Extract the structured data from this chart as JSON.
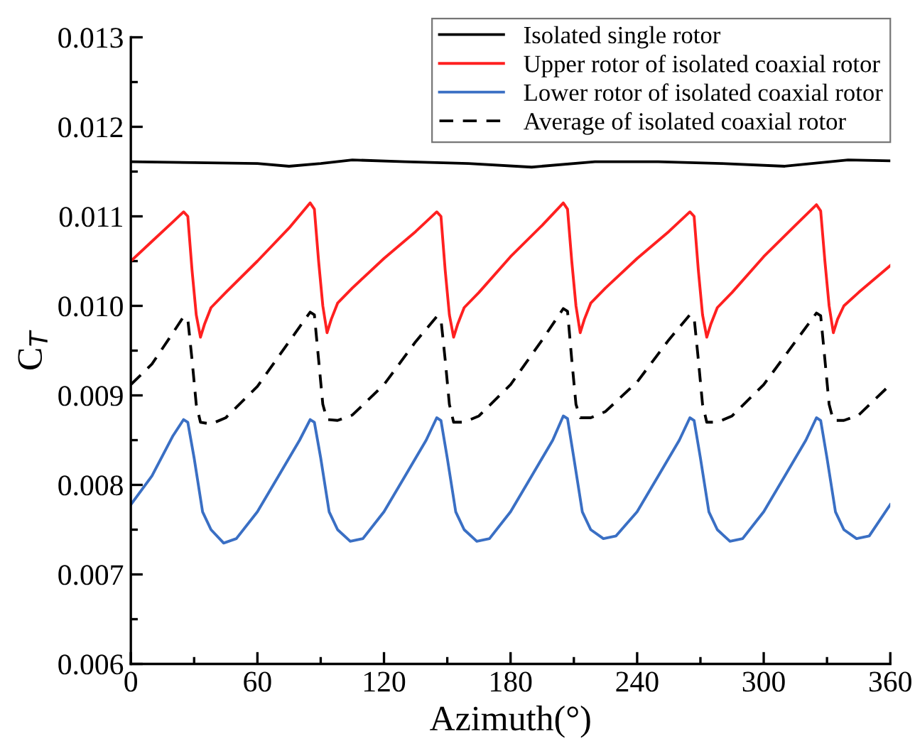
{
  "chart_data": {
    "type": "line",
    "xlabel": "Azimuth(°)",
    "ylabel": "C$_{T}$",
    "xlim": [
      0,
      360
    ],
    "ylim": [
      0.006,
      0.013
    ],
    "xticks": [
      0,
      60,
      120,
      180,
      240,
      300,
      360
    ],
    "yticks": [
      {
        "value": 0.006,
        "label": "0.006"
      },
      {
        "value": 0.007,
        "label": "0.007"
      },
      {
        "value": 0.008,
        "label": "0.008"
      },
      {
        "value": 0.009,
        "label": "0.009"
      },
      {
        "value": 0.01,
        "label": "0.010"
      },
      {
        "value": 0.011,
        "label": "0.011"
      },
      {
        "value": 0.012,
        "label": "0.012"
      },
      {
        "value": 0.013,
        "label": "0.013"
      }
    ],
    "grid": false,
    "legend": "top right",
    "marker": "none",
    "series": [
      {
        "name": "Isolated single rotor",
        "color": "#000000",
        "line_style": "solid",
        "x": [
          0,
          30,
          60,
          75,
          90,
          105,
          130,
          160,
          190,
          220,
          250,
          280,
          310,
          340,
          360
        ],
        "values": [
          0.01161,
          0.0116,
          0.01159,
          0.01156,
          0.01159,
          0.01163,
          0.01161,
          0.01159,
          0.01155,
          0.01161,
          0.01161,
          0.01159,
          0.01156,
          0.01163,
          0.01162
        ]
      },
      {
        "name": "Upper rotor of isolated coaxial rotor",
        "color": "#ff2020",
        "line_style": "solid",
        "x": [
          0,
          10,
          20,
          25,
          27,
          29,
          31,
          33,
          35,
          38,
          45,
          60,
          75,
          85,
          87,
          89,
          91,
          93,
          95,
          98,
          105,
          120,
          135,
          145,
          147,
          149,
          151,
          153,
          155,
          158,
          165,
          180,
          195,
          205,
          207,
          209,
          211,
          213,
          215,
          218,
          225,
          240,
          255,
          265,
          267,
          269,
          271,
          273,
          275,
          278,
          285,
          300,
          315,
          325,
          327,
          329,
          331,
          333,
          335,
          338,
          345,
          360
        ],
        "values": [
          0.0105,
          0.01072,
          0.01094,
          0.01105,
          0.011,
          0.0104,
          0.0099,
          0.00965,
          0.0098,
          0.00998,
          0.01015,
          0.0105,
          0.01087,
          0.01115,
          0.01108,
          0.0105,
          0.01,
          0.0097,
          0.00985,
          0.01003,
          0.0102,
          0.01053,
          0.01083,
          0.01105,
          0.011,
          0.0104,
          0.0099,
          0.00965,
          0.0098,
          0.00998,
          0.01015,
          0.01055,
          0.0109,
          0.01115,
          0.01108,
          0.0105,
          0.01,
          0.0097,
          0.00985,
          0.01003,
          0.0102,
          0.01053,
          0.01083,
          0.01105,
          0.011,
          0.0104,
          0.0099,
          0.00965,
          0.0098,
          0.00998,
          0.01015,
          0.01055,
          0.0109,
          0.01113,
          0.01106,
          0.0105,
          0.01,
          0.0097,
          0.00985,
          0.01,
          0.01015,
          0.01045
        ]
      },
      {
        "name": "Lower rotor of isolated coaxial rotor",
        "color": "#3a6fc4",
        "line_style": "solid",
        "x": [
          0,
          10,
          20,
          25,
          27,
          30,
          34,
          38,
          44,
          50,
          60,
          70,
          80,
          85,
          87,
          90,
          94,
          98,
          104,
          110,
          120,
          130,
          140,
          145,
          147,
          150,
          154,
          158,
          164,
          170,
          180,
          190,
          200,
          205,
          207,
          210,
          214,
          218,
          224,
          230,
          240,
          250,
          260,
          265,
          267,
          270,
          274,
          278,
          284,
          290,
          300,
          310,
          320,
          325,
          327,
          330,
          334,
          338,
          344,
          350,
          360
        ],
        "values": [
          0.00778,
          0.0081,
          0.00855,
          0.00873,
          0.0087,
          0.0083,
          0.0077,
          0.0075,
          0.00735,
          0.0074,
          0.0077,
          0.0081,
          0.0085,
          0.00873,
          0.0087,
          0.0083,
          0.0077,
          0.0075,
          0.00737,
          0.0074,
          0.0077,
          0.0081,
          0.0085,
          0.00875,
          0.00872,
          0.0083,
          0.0077,
          0.0075,
          0.00737,
          0.0074,
          0.0077,
          0.0081,
          0.0085,
          0.00877,
          0.00874,
          0.0083,
          0.0077,
          0.0075,
          0.0074,
          0.00743,
          0.0077,
          0.0081,
          0.0085,
          0.00875,
          0.00872,
          0.0083,
          0.0077,
          0.0075,
          0.00737,
          0.0074,
          0.0077,
          0.0081,
          0.0085,
          0.00875,
          0.00872,
          0.0083,
          0.0077,
          0.0075,
          0.0074,
          0.00743,
          0.00778
        ]
      },
      {
        "name": "Average of isolated coaxial rotor",
        "color": "#000000",
        "line_style": "dashed",
        "x": [
          0,
          10,
          20,
          25,
          27,
          29,
          31,
          33,
          38,
          45,
          60,
          75,
          85,
          87,
          89,
          91,
          93,
          98,
          105,
          120,
          135,
          145,
          147,
          149,
          151,
          153,
          158,
          165,
          180,
          195,
          205,
          207,
          209,
          211,
          213,
          218,
          225,
          240,
          255,
          265,
          267,
          269,
          271,
          273,
          278,
          285,
          300,
          315,
          325,
          327,
          329,
          331,
          333,
          338,
          345,
          360
        ],
        "values": [
          0.00912,
          0.00935,
          0.0097,
          0.00988,
          0.00985,
          0.0094,
          0.0089,
          0.0087,
          0.00868,
          0.00875,
          0.0091,
          0.0096,
          0.00993,
          0.0099,
          0.0094,
          0.0089,
          0.00873,
          0.00872,
          0.00878,
          0.00912,
          0.0096,
          0.00988,
          0.00985,
          0.0094,
          0.0089,
          0.0087,
          0.0087,
          0.00877,
          0.00912,
          0.00962,
          0.00997,
          0.00994,
          0.0094,
          0.0089,
          0.00875,
          0.00875,
          0.00882,
          0.00915,
          0.00962,
          0.0099,
          0.00987,
          0.0094,
          0.0089,
          0.0087,
          0.0087,
          0.00877,
          0.00912,
          0.0096,
          0.00992,
          0.00989,
          0.0094,
          0.0089,
          0.00872,
          0.00872,
          0.00878,
          0.00912
        ]
      }
    ]
  }
}
